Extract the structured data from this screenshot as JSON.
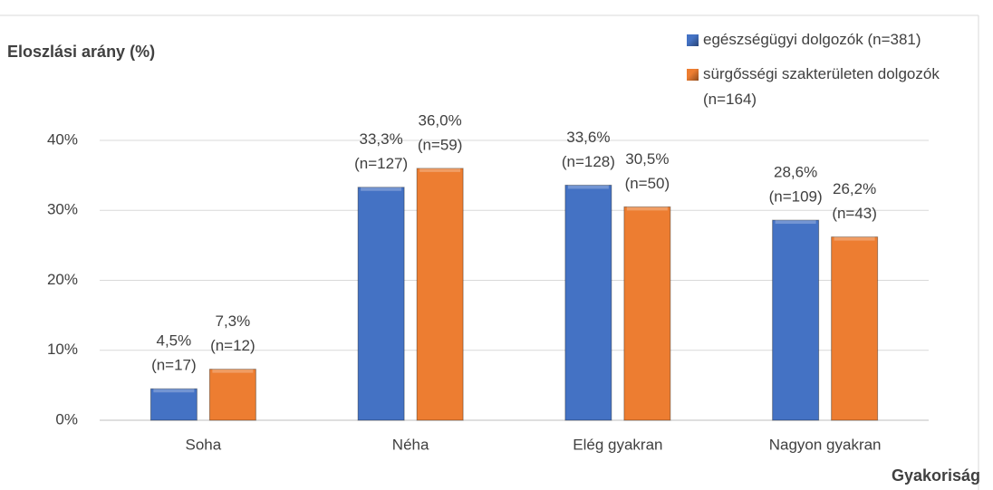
{
  "chart_data": {
    "type": "bar",
    "title": "Eloszlási arány (%)",
    "x_label": "Gyakoriság",
    "categories": [
      "Soha",
      "Néha",
      "Elég gyakran",
      "Nagyon gyakran"
    ],
    "series": [
      {
        "name": "egészségügyi dolgozók (n=381)",
        "color": "#4472c4",
        "values": [
          4.5,
          33.3,
          33.6,
          28.6
        ],
        "value_labels": [
          [
            "4,5%",
            "(n=17)"
          ],
          [
            "33,3%",
            "(n=127)"
          ],
          [
            "33,6%",
            "(n=128)"
          ],
          [
            "28,6%",
            "(n=109)"
          ]
        ]
      },
      {
        "name": "sürgősségi szakterületen dolgozók (n=164)",
        "color": "#ed7d31",
        "values": [
          7.3,
          36.0,
          30.5,
          26.2
        ],
        "value_labels": [
          [
            "7,3%",
            "(n=12)"
          ],
          [
            "36,0%",
            "(n=59)"
          ],
          [
            "30,5%",
            "(n=50)"
          ],
          [
            "26,2%",
            "(n=43)"
          ]
        ]
      }
    ],
    "ylim": [
      0,
      40
    ],
    "yticks": [
      {
        "value": 0,
        "label": "0%"
      },
      {
        "value": 10,
        "label": "10%"
      },
      {
        "value": 20,
        "label": "20%"
      },
      {
        "value": 30,
        "label": "30%"
      },
      {
        "value": 40,
        "label": "40%"
      }
    ],
    "grid": true,
    "legend": "top-right"
  }
}
